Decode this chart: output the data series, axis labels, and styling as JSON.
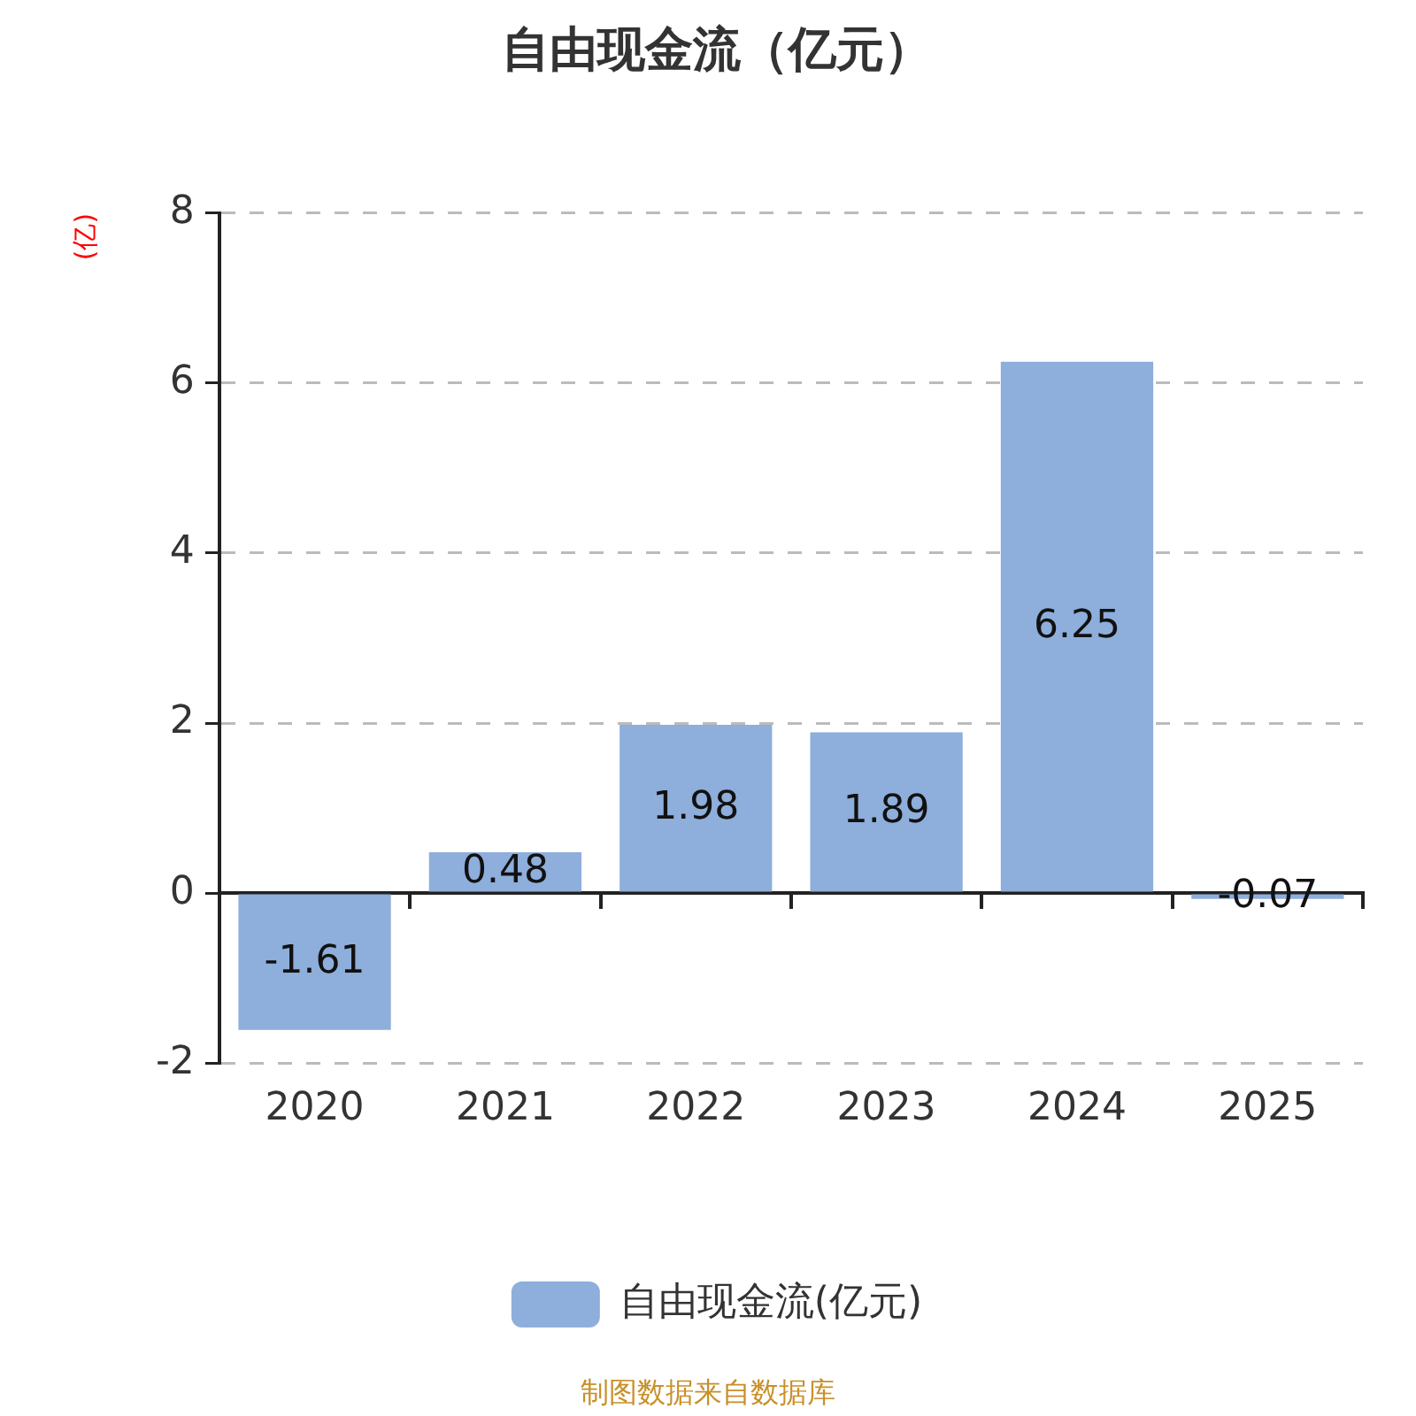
{
  "chart_data": {
    "type": "bar",
    "title": "自由现金流（亿元）",
    "ylabel": "(亿)",
    "categories": [
      "2020",
      "2021",
      "2022",
      "2023",
      "2024",
      "2025"
    ],
    "series": [
      {
        "name": "自由现金流(亿元)",
        "color": "#8eaedb",
        "values": [
          -1.61,
          0.48,
          1.98,
          1.89,
          6.25,
          -0.07
        ]
      }
    ],
    "ylim": [
      -2,
      8
    ],
    "yticks": [
      -2,
      0,
      2,
      4,
      6,
      8
    ],
    "grid": "y",
    "legend": "bottom",
    "data_labels": true,
    "annotations": [
      "制图数据来自数据库"
    ]
  }
}
